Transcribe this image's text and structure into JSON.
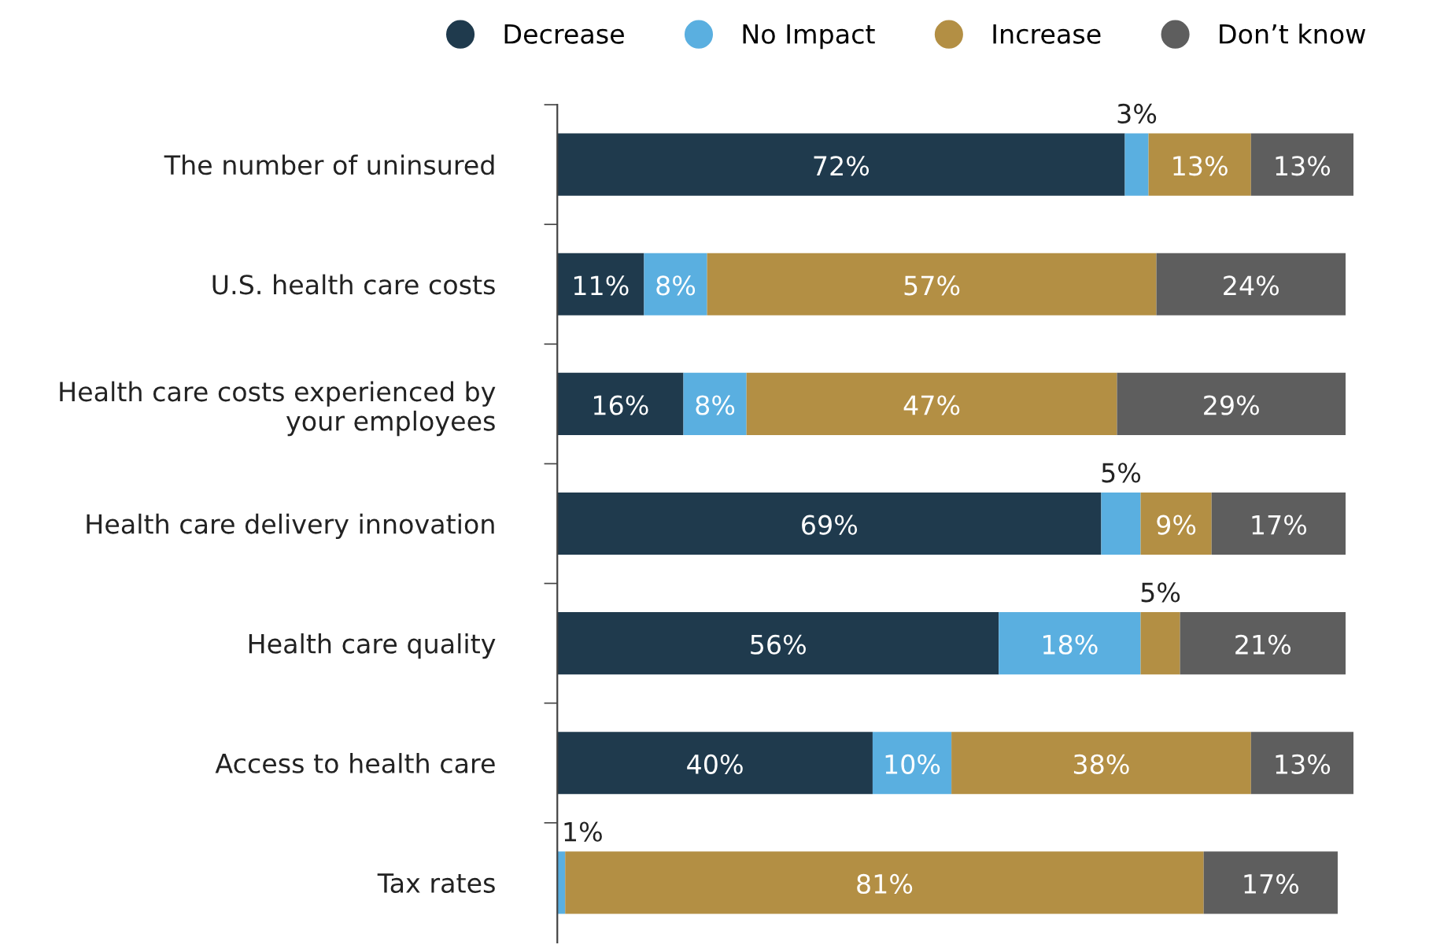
{
  "chart_data": {
    "type": "bar",
    "orientation": "horizontal",
    "stacked": true,
    "legend": "top",
    "grid": false,
    "tick_labels": "y",
    "categories": [
      "The number of uninsured",
      "U.S. health care costs",
      "Health care costs experienced by your employees",
      "Health care delivery innovation",
      "Health care quality",
      "Access to health care",
      "Tax rates"
    ],
    "series": [
      {
        "name": "Decrease",
        "color": "#1f3a4d",
        "values": [
          72,
          11,
          16,
          69,
          56,
          40,
          null
        ],
        "value_labels": [
          "72%",
          "11%",
          "16%",
          "69%",
          "56%",
          "40%",
          null
        ]
      },
      {
        "name": "No Impact",
        "color": "#5aafe0",
        "values": [
          3,
          8,
          8,
          5,
          18,
          10,
          1
        ],
        "value_labels": [
          "3%",
          "8%",
          "8%",
          "5%",
          "18%",
          "10%",
          "1%"
        ]
      },
      {
        "name": "Increase",
        "color": "#b38f44",
        "values": [
          13,
          57,
          47,
          9,
          5,
          38,
          81
        ],
        "value_labels": [
          "13%",
          "57%",
          "47%",
          "9%",
          "5%",
          "38%",
          "81%"
        ]
      },
      {
        "name": "Don’t know",
        "color": "#5e5e5e",
        "values": [
          13,
          24,
          29,
          17,
          21,
          13,
          17
        ],
        "value_labels": [
          "13%",
          "24%",
          "29%",
          "17%",
          "21%",
          "13%",
          "17%"
        ]
      }
    ]
  }
}
